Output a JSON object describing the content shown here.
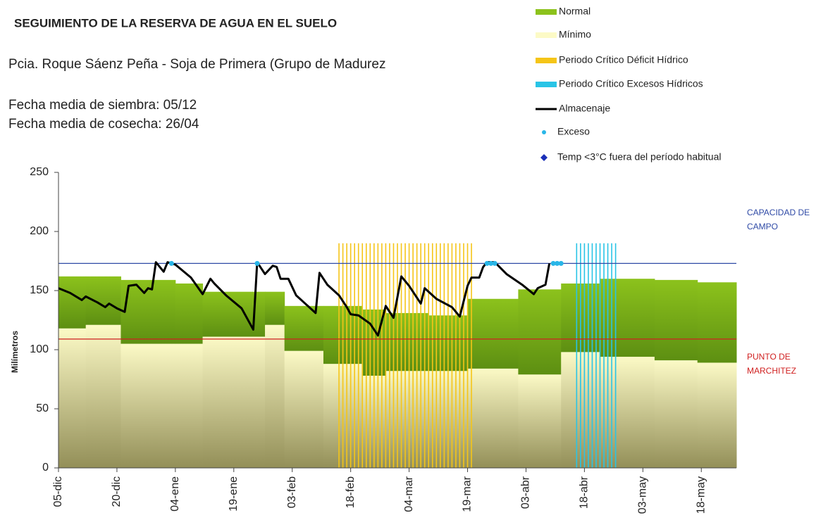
{
  "chart_data": {
    "type": "area",
    "title": "SEGUIMIENTO DE LA RESERVA DE AGUA EN EL SUELO",
    "subtitle": "Pcia. Roque Sáenz Peña - Soja de Primera (Grupo de Madurez",
    "notes": [
      "Fecha media de siembra: 05/12",
      "Fecha media de cosecha: 26/04"
    ],
    "y_label": "Milímetros",
    "xlim": [
      0,
      174
    ],
    "xticks": [
      {
        "value": 0,
        "label": "05-dic"
      },
      {
        "value": 15,
        "label": "20-dic"
      },
      {
        "value": 30,
        "label": "04-ene"
      },
      {
        "value": 45,
        "label": "19-ene"
      },
      {
        "value": 60,
        "label": "03-feb"
      },
      {
        "value": 75,
        "label": "18-feb"
      },
      {
        "value": 90,
        "label": "04-mar"
      },
      {
        "value": 105,
        "label": "19-mar"
      },
      {
        "value": 120,
        "label": "03-abr"
      },
      {
        "value": 135,
        "label": "18-abr"
      },
      {
        "value": 150,
        "label": "03-may"
      },
      {
        "value": 165,
        "label": "18-may"
      }
    ],
    "ylim": [
      0,
      250
    ],
    "yticks": [
      0,
      50,
      100,
      150,
      200,
      250
    ],
    "band_x": [
      0,
      7,
      16,
      30,
      37,
      53,
      58,
      68,
      78,
      84,
      95,
      105,
      118,
      129,
      139,
      153,
      164
    ],
    "bands": [
      {
        "name": "Mínimo",
        "color": "#fcfac6",
        "color_bottom": "#938f58",
        "values": [
          118,
          121,
          105,
          105,
          111,
          121,
          99,
          88,
          78,
          82,
          82,
          84,
          79,
          98,
          94,
          91,
          89
        ]
      },
      {
        "name": "Normal",
        "color": "#8cc21c",
        "color_bottom": "#5d8f12",
        "values": [
          44,
          41,
          54,
          51,
          38,
          28,
          38,
          49,
          56,
          49,
          47,
          59,
          72,
          58,
          66,
          68,
          68
        ]
      }
    ],
    "periods": [
      {
        "name": "Periodo Crítico Déficit Hídrico",
        "color": "#f5c518",
        "start": 72,
        "end": 106,
        "level": 190
      },
      {
        "name": "Periodo Crítico Excesos Hídricos",
        "color": "#29c4e6",
        "start": 133,
        "end": 143,
        "level": 190
      }
    ],
    "line": {
      "name": "Almacenaje",
      "color": "#000000",
      "x": [
        0,
        3,
        6,
        7,
        10,
        12,
        13,
        15,
        17,
        18,
        20,
        22,
        23,
        24,
        25,
        27,
        28,
        30,
        34,
        37,
        39,
        40,
        43,
        47,
        50,
        51,
        53,
        55,
        56,
        57,
        59,
        61,
        63,
        66,
        67,
        69,
        72,
        74,
        75,
        77,
        80,
        82,
        84,
        85,
        86,
        88,
        90,
        93,
        94,
        97,
        101,
        103,
        105,
        106,
        108,
        109,
        110,
        112,
        115,
        119,
        122,
        123,
        125,
        126
      ],
      "values": [
        152,
        148,
        142,
        145,
        140,
        136,
        139,
        135,
        132,
        154,
        155,
        148,
        152,
        151,
        174,
        166,
        174,
        172,
        161,
        147,
        160,
        156,
        146,
        135,
        117,
        174,
        164,
        171,
        170,
        160,
        160,
        146,
        140,
        131,
        165,
        155,
        146,
        136,
        130,
        129,
        122,
        112,
        137,
        132,
        127,
        162,
        154,
        139,
        152,
        143,
        136,
        128,
        154,
        161,
        161,
        170,
        174,
        174,
        164,
        155,
        147,
        152,
        155,
        173
      ]
    },
    "points": {
      "name": "Exceso",
      "color": "#29b6e8",
      "x": [
        29,
        51,
        110,
        111,
        112,
        127,
        128,
        129
      ],
      "values": [
        173,
        173,
        173,
        173,
        173,
        173,
        173,
        173
      ]
    },
    "extra_legend": {
      "name": "Temp <3°C fuera del período habitual",
      "color": "#1a2fb8"
    },
    "reference_lines": [
      {
        "label": "CAPACIDAD DE CAMPO",
        "value": 173,
        "color": "#2f4aa6"
      },
      {
        "label": "PUNTO DE MARCHITEZ",
        "value": 109,
        "color": "#d02020"
      }
    ]
  }
}
